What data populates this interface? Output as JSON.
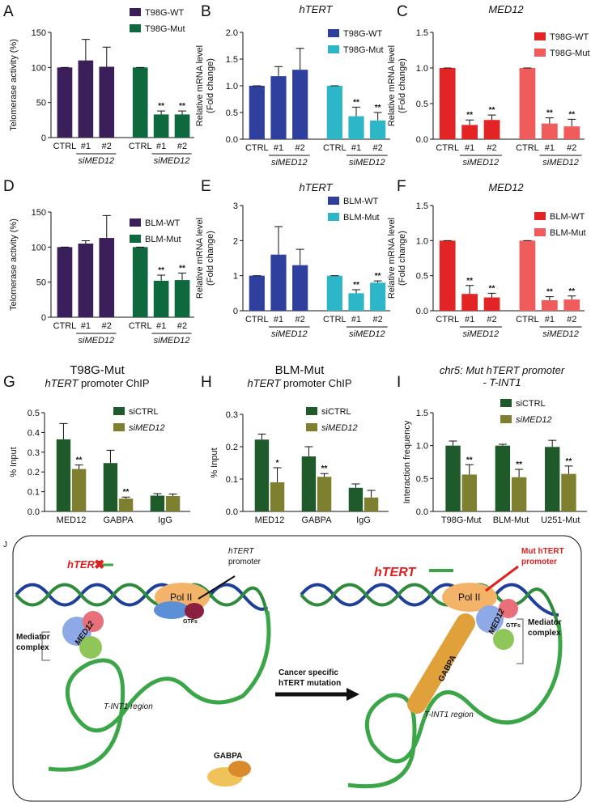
{
  "chart_data": [
    {
      "type": "bar",
      "label": "A",
      "ylabel": [
        "Telomerase activity (%)"
      ],
      "categories": [
        "CTRL",
        "#1",
        "#2",
        "CTRL",
        "#1",
        "#2"
      ],
      "group_labels": [
        "siMED12",
        "siMED12"
      ],
      "ylim": [
        0,
        150
      ],
      "yticks": [
        0,
        50,
        100,
        150
      ],
      "series": [
        {
          "name": "T98G-WT",
          "color": "#3b1f5a",
          "values": [
            100,
            110,
            101,
            null,
            null,
            null
          ],
          "errors": [
            0,
            30,
            28,
            null,
            null,
            null
          ],
          "annotations": [
            null,
            null,
            null,
            null,
            null,
            null
          ]
        },
        {
          "name": "T98G-Mut",
          "color": "#0e6a3e",
          "values": [
            null,
            null,
            null,
            100,
            33,
            33
          ],
          "errors": [
            null,
            null,
            null,
            0,
            5,
            5
          ],
          "annotations": [
            null,
            null,
            null,
            null,
            "**",
            "**"
          ]
        }
      ]
    },
    {
      "type": "bar",
      "label": "B",
      "title": [
        "hTERT"
      ],
      "ylabel": [
        "Relative mRNA level",
        "(Fold change)"
      ],
      "categories": [
        "CTRL",
        "#1",
        "#2",
        "CTRL",
        "#1",
        "#2"
      ],
      "group_labels": [
        "siMED12",
        "siMED12"
      ],
      "ylim": [
        0,
        2
      ],
      "yticks": [
        {
          "value": 0,
          "label": "0.0"
        },
        0.5,
        {
          "value": 1,
          "label": "1.0"
        },
        1.5,
        {
          "value": 2,
          "label": "2.0"
        }
      ],
      "series": [
        {
          "name": "T98G-WT",
          "color": "#2e3f9e",
          "values": [
            1.0,
            1.18,
            1.3,
            null,
            null,
            null
          ],
          "errors": [
            0,
            0.18,
            0.4,
            null,
            null,
            null
          ],
          "annotations": [
            null,
            null,
            null,
            null,
            null,
            null
          ]
        },
        {
          "name": "T98G-Mut",
          "color": "#2db6c8",
          "values": [
            null,
            null,
            null,
            1.0,
            0.43,
            0.35
          ],
          "errors": [
            null,
            null,
            null,
            0,
            0.17,
            0.15
          ],
          "annotations": [
            null,
            null,
            null,
            null,
            "**",
            "**"
          ]
        }
      ]
    },
    {
      "type": "bar",
      "label": "C",
      "title": [
        "MED12"
      ],
      "ylabel": [
        "Relative mRNA level",
        "(Fold change)"
      ],
      "categories": [
        "CTRL",
        "#1",
        "#2",
        "CTRL",
        "#1",
        "#2"
      ],
      "group_labels": [
        "siMED12",
        "siMED12"
      ],
      "ylim": [
        0,
        1.5
      ],
      "yticks": [
        {
          "value": 0,
          "label": "0.0"
        },
        0.5,
        {
          "value": 1,
          "label": "1.0"
        },
        1.5
      ],
      "series": [
        {
          "name": "T98G-WT",
          "color": "#e32424",
          "values": [
            1.0,
            0.2,
            0.27,
            null,
            null,
            null
          ],
          "errors": [
            0,
            0.07,
            0.07,
            null,
            null,
            null
          ],
          "annotations": [
            null,
            "**",
            "**",
            null,
            null,
            null
          ]
        },
        {
          "name": "T98G-Mut",
          "color": "#f05c5c",
          "values": [
            null,
            null,
            null,
            1.0,
            0.22,
            0.18
          ],
          "errors": [
            null,
            null,
            null,
            0,
            0.08,
            0.1
          ],
          "annotations": [
            null,
            null,
            null,
            null,
            "**",
            "**"
          ]
        }
      ]
    },
    {
      "type": "bar",
      "label": "D",
      "ylabel": [
        "Telomerase activity (%)"
      ],
      "categories": [
        "CTRL",
        "#1",
        "#2",
        "CTRL",
        "#1",
        "#2"
      ],
      "group_labels": [
        "siMED12",
        "siMED12"
      ],
      "ylim": [
        0,
        150
      ],
      "yticks": [
        0,
        50,
        100,
        150
      ],
      "series": [
        {
          "name": "BLM-WT",
          "color": "#3b1f5a",
          "values": [
            100,
            105,
            113,
            null,
            null,
            null
          ],
          "errors": [
            0,
            4,
            32,
            null,
            null,
            null
          ],
          "annotations": [
            null,
            null,
            null,
            null,
            null,
            null
          ]
        },
        {
          "name": "BLM-Mut",
          "color": "#0e6a3e",
          "values": [
            null,
            null,
            null,
            100,
            52,
            53
          ],
          "errors": [
            null,
            null,
            null,
            0,
            8,
            10
          ],
          "annotations": [
            null,
            null,
            null,
            null,
            "**",
            "**"
          ]
        }
      ]
    },
    {
      "type": "bar",
      "label": "E",
      "title": [
        "hTERT"
      ],
      "ylabel": [
        "Relative mRNA level",
        "(Fold change)"
      ],
      "categories": [
        "CTRL",
        "#1",
        "#2",
        "CTRL",
        "#1",
        "#2"
      ],
      "group_labels": [
        "siMED12",
        "siMED12"
      ],
      "ylim": [
        0,
        3
      ],
      "yticks": [
        0,
        1,
        2,
        3
      ],
      "series": [
        {
          "name": "BLM-WT",
          "color": "#2e3f9e",
          "values": [
            1.0,
            1.6,
            1.3,
            null,
            null,
            null
          ],
          "errors": [
            0,
            0.8,
            0.45,
            null,
            null,
            null
          ],
          "annotations": [
            null,
            null,
            null,
            null,
            null,
            null
          ]
        },
        {
          "name": "BLM-Mut",
          "color": "#2db6c8",
          "values": [
            null,
            null,
            null,
            1.0,
            0.5,
            0.8
          ],
          "errors": [
            null,
            null,
            null,
            0,
            0.1,
            0.05
          ],
          "annotations": [
            null,
            null,
            null,
            null,
            "**",
            "**"
          ]
        }
      ]
    },
    {
      "type": "bar",
      "label": "F",
      "title": [
        "MED12"
      ],
      "ylabel": [
        "Relative mRNA level",
        "(Fold change)"
      ],
      "categories": [
        "CTRL",
        "#1",
        "#2",
        "CTRL",
        "#1",
        "#2"
      ],
      "group_labels": [
        "siMED12",
        "siMED12"
      ],
      "ylim": [
        0,
        1.5
      ],
      "yticks": [
        {
          "value": 0,
          "label": "0.0"
        },
        0.5,
        {
          "value": 1,
          "label": "1.0"
        },
        1.5
      ],
      "series": [
        {
          "name": "BLM-WT",
          "color": "#e32424",
          "values": [
            1.0,
            0.24,
            0.19,
            null,
            null,
            null
          ],
          "errors": [
            0,
            0.12,
            0.06,
            null,
            null,
            null
          ],
          "annotations": [
            null,
            "**",
            "**",
            null,
            null,
            null
          ]
        },
        {
          "name": "BLM-Mut",
          "color": "#f05c5c",
          "values": [
            null,
            null,
            null,
            1.0,
            0.15,
            0.16
          ],
          "errors": [
            null,
            null,
            null,
            0,
            0.05,
            0.05
          ],
          "annotations": [
            null,
            null,
            null,
            null,
            "**",
            "**"
          ]
        }
      ]
    },
    {
      "type": "bar",
      "label": "G",
      "title": [
        "T98G-Mut"
      ],
      "subtitle": {
        "italic": "hTERT",
        "rest": " promoter ChIP"
      },
      "ylabel": [
        "% Input"
      ],
      "categories": [
        "MED12",
        "GABPA",
        "IgG"
      ],
      "ylim": [
        0,
        0.5
      ],
      "yticks": [
        {
          "value": 0,
          "label": "0.0"
        },
        0.1,
        0.2,
        0.3,
        0.4,
        0.5
      ],
      "series": [
        {
          "name": "siCTRL",
          "color": "#1f5a2b",
          "values": [
            0.365,
            0.245,
            0.08
          ],
          "errors": [
            0.08,
            0.065,
            0.01
          ],
          "annotations": [
            null,
            null,
            null
          ]
        },
        {
          "name": "siMED12",
          "style": "italic",
          "color": "#7e8030",
          "values": [
            0.215,
            0.065,
            0.078
          ],
          "errors": [
            0.02,
            0.008,
            0.01
          ],
          "annotations": [
            "**",
            "**",
            null
          ]
        }
      ]
    },
    {
      "type": "bar",
      "label": "H",
      "title": [
        "BLM-Mut"
      ],
      "subtitle": {
        "italic": "hTERT",
        "rest": " promoter ChIP"
      },
      "ylabel": [
        "% Input"
      ],
      "categories": [
        "MED12",
        "GABPA",
        "IgG"
      ],
      "ylim": [
        0,
        0.3
      ],
      "yticks": [
        {
          "value": 0,
          "label": "0.0"
        },
        0.1,
        0.2,
        0.3
      ],
      "series": [
        {
          "name": "siCTRL",
          "color": "#1f5a2b",
          "values": [
            0.222,
            0.17,
            0.073
          ],
          "errors": [
            0.017,
            0.03,
            0.012
          ],
          "annotations": [
            null,
            null,
            null
          ]
        },
        {
          "name": "siMED12",
          "style": "italic",
          "color": "#7e8030",
          "values": [
            0.09,
            0.107,
            0.043
          ],
          "errors": [
            0.045,
            0.01,
            0.022
          ],
          "annotations": [
            "*",
            "**",
            null
          ]
        }
      ]
    },
    {
      "type": "bar",
      "label": "I",
      "title": [
        "chr5: Mut hTERT promoter",
        "- T-INT1"
      ],
      "ylabel": [
        "Interaction frequency"
      ],
      "categories": [
        "T98G-Mut",
        "BLM-Mut",
        "U251-Mut"
      ],
      "ylim": [
        0,
        1.5
      ],
      "yticks": [
        {
          "value": 0,
          "label": "0.0"
        },
        0.5,
        {
          "value": 1,
          "label": "1.0"
        },
        1.5
      ],
      "series": [
        {
          "name": "siCTRL",
          "color": "#1f5a2b",
          "values": [
            1.0,
            1.0,
            0.98
          ],
          "errors": [
            0.07,
            0.02,
            0.1
          ],
          "annotations": [
            null,
            null,
            null
          ]
        },
        {
          "name": "siMED12",
          "style": "italic",
          "color": "#7e8030",
          "values": [
            0.56,
            0.52,
            0.57
          ],
          "errors": [
            0.15,
            0.12,
            0.12
          ],
          "annotations": [
            "**",
            "**",
            "**"
          ]
        }
      ]
    }
  ],
  "diagram": {
    "label": "J",
    "left": {
      "gene": "hTERT",
      "pol": "Pol II",
      "promoter": [
        "hTERT",
        "promoter"
      ],
      "gtfs": "GTFs",
      "mediator": [
        "Mediator",
        "complex"
      ],
      "med12": "MED12",
      "region": "T-INT1 region",
      "gabpa": "GABPA"
    },
    "arrow_text": [
      "Cancer specific",
      "hTERT mutation"
    ],
    "right": {
      "gene": "hTERT",
      "pol": "Pol II",
      "promoter": [
        "Mut hTERT",
        "promoter"
      ],
      "gtfs": "GTFs",
      "mediator": [
        "Mediator",
        "complex"
      ],
      "med12": "MED12",
      "region": "T-INT1 region",
      "gabpa": "GABPA"
    }
  }
}
